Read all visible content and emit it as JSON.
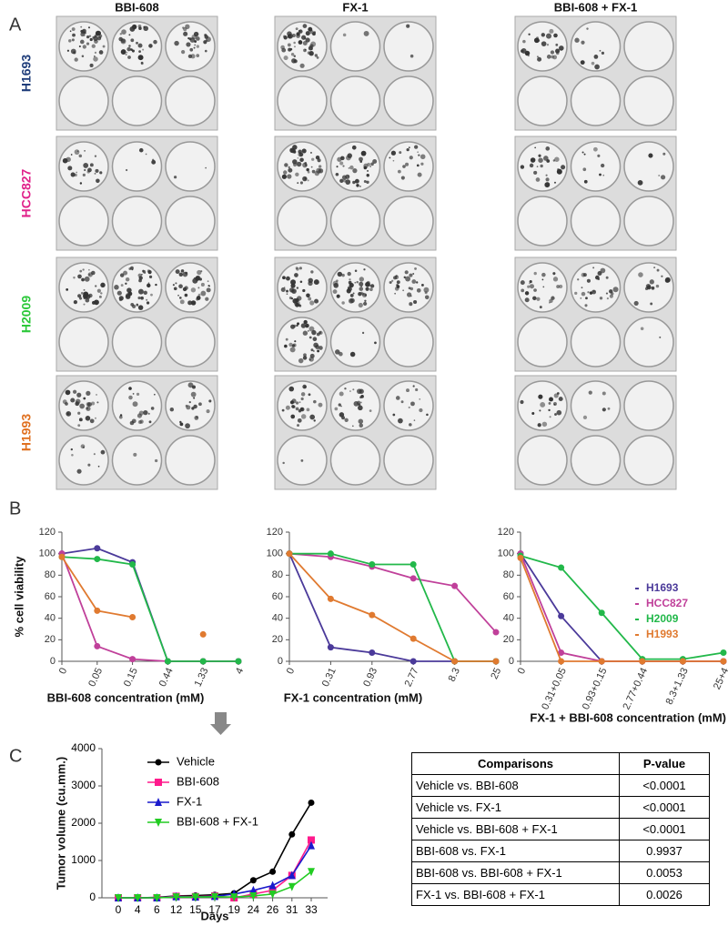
{
  "panel_a": {
    "label": "A",
    "columns": [
      "BBI-608",
      "FX-1",
      "BBI-608 + FX-1"
    ],
    "rows": [
      {
        "name": "H1693",
        "color": "#1f3d7a"
      },
      {
        "name": "HCC827",
        "color": "#e0218a"
      },
      {
        "name": "H2009",
        "color": "#2cc83a"
      },
      {
        "name": "H1993",
        "color": "#e07020"
      }
    ]
  },
  "panel_b_label": "B",
  "panel_c_label": "C",
  "chart_data": [
    {
      "type": "line",
      "ylabel": "% cell viability",
      "xlabel": "BBI-608 concentration (mM)",
      "categories": [
        "0",
        "0.05",
        "0.15",
        "0.44",
        "1.33",
        "4"
      ],
      "ylim": [
        0,
        120
      ],
      "yticks": [
        0,
        20,
        40,
        60,
        80,
        100,
        120
      ],
      "series": [
        {
          "name": "H1693",
          "color": "#4b3a9a",
          "marker": "circle",
          "values": [
            100,
            105,
            92,
            0,
            0,
            0
          ]
        },
        {
          "name": "HCC827",
          "color": "#c0409a",
          "marker": "circle",
          "values": [
            100,
            14,
            2,
            0,
            0,
            0
          ]
        },
        {
          "name": "H2009",
          "color": "#22b84a",
          "marker": "circle",
          "values": [
            97,
            95,
            90,
            0,
            0,
            0
          ]
        },
        {
          "name": "H1993",
          "color": "#e07a30",
          "marker": "circle",
          "values": [
            97,
            47,
            41,
            null,
            25,
            null
          ]
        }
      ]
    },
    {
      "type": "line",
      "xlabel": "FX-1 concentration (mM)",
      "categories": [
        "0",
        "0.31",
        "0.93",
        "2.77",
        "8.3",
        "25"
      ],
      "ylim": [
        0,
        120
      ],
      "yticks": [
        0,
        20,
        40,
        60,
        80,
        100,
        120
      ],
      "series": [
        {
          "name": "H1693",
          "color": "#4b3a9a",
          "marker": "circle",
          "values": [
            100,
            13,
            8,
            0,
            0,
            0
          ]
        },
        {
          "name": "HCC827",
          "color": "#c0409a",
          "marker": "circle",
          "values": [
            100,
            97,
            88,
            77,
            70,
            27
          ]
        },
        {
          "name": "H2009",
          "color": "#22b84a",
          "marker": "circle",
          "values": [
            100,
            100,
            90,
            90,
            0,
            0
          ]
        },
        {
          "name": "H1993",
          "color": "#e07a30",
          "marker": "circle",
          "values": [
            100,
            58,
            43,
            21,
            0,
            0
          ]
        }
      ]
    },
    {
      "type": "line",
      "xlabel": "FX-1 + BBI-608 concentration (mM)",
      "legend": "upper right",
      "categories": [
        "0",
        "0.31+0.05",
        "0.93+0.15",
        "2.77+0.44",
        "8.3+1.33",
        "25+4"
      ],
      "ylim": [
        0,
        120
      ],
      "yticks": [
        0,
        20,
        40,
        60,
        80,
        100,
        120
      ],
      "series": [
        {
          "name": "H1693",
          "color": "#4b3a9a",
          "marker": "circle",
          "values": [
            100,
            42,
            0,
            0,
            0,
            0
          ]
        },
        {
          "name": "HCC827",
          "color": "#c0409a",
          "marker": "circle",
          "values": [
            100,
            8,
            0,
            0,
            0,
            0
          ]
        },
        {
          "name": "H2009",
          "color": "#22b84a",
          "marker": "circle",
          "values": [
            98,
            87,
            45,
            2,
            2,
            8
          ]
        },
        {
          "name": "H1993",
          "color": "#e07a30",
          "marker": "circle",
          "values": [
            96,
            0,
            0,
            0,
            0,
            0
          ]
        }
      ]
    },
    {
      "type": "line",
      "ylabel": "Tumor volume (cu.mm.)",
      "xlabel": "Days",
      "legend": "upper left",
      "categories": [
        "0",
        "4",
        "6",
        "12",
        "15",
        "17",
        "19",
        "24",
        "26",
        "31",
        "33"
      ],
      "ylim": [
        0,
        4000
      ],
      "yticks": [
        0,
        1000,
        2000,
        3000,
        4000
      ],
      "series": [
        {
          "name": "Vehicle",
          "color": "#000000",
          "marker": "circle",
          "values": [
            0,
            0,
            10,
            50,
            60,
            80,
            120,
            470,
            700,
            1700,
            2550
          ]
        },
        {
          "name": "BBI-608",
          "color": "#ff1a8c",
          "marker": "square",
          "values": [
            0,
            0,
            0,
            40,
            30,
            50,
            0,
            100,
            200,
            600,
            1550
          ]
        },
        {
          "name": "FX-1",
          "color": "#1a1acc",
          "marker": "triangle",
          "values": [
            0,
            0,
            0,
            30,
            20,
            40,
            100,
            200,
            330,
            600,
            1400
          ]
        },
        {
          "name": "BBI-608 + FX-1",
          "color": "#22cc22",
          "marker": "triangle-down",
          "values": [
            0,
            0,
            0,
            20,
            20,
            30,
            20,
            50,
            100,
            300,
            700
          ]
        }
      ]
    }
  ],
  "table": {
    "header": [
      "Comparisons",
      "P-value"
    ],
    "rows": [
      [
        "Vehicle vs. BBI-608",
        "<0.0001"
      ],
      [
        "Vehicle vs. FX-1",
        "<0.0001"
      ],
      [
        "Vehicle vs. BBI-608 + FX-1",
        "<0.0001"
      ],
      [
        "BBI-608 vs. FX-1",
        "0.9937"
      ],
      [
        "BBI-608 vs. BBI-608 + FX-1",
        "0.0053"
      ],
      [
        "FX-1 vs. BBI-608 + FX-1",
        "0.0026"
      ]
    ]
  }
}
